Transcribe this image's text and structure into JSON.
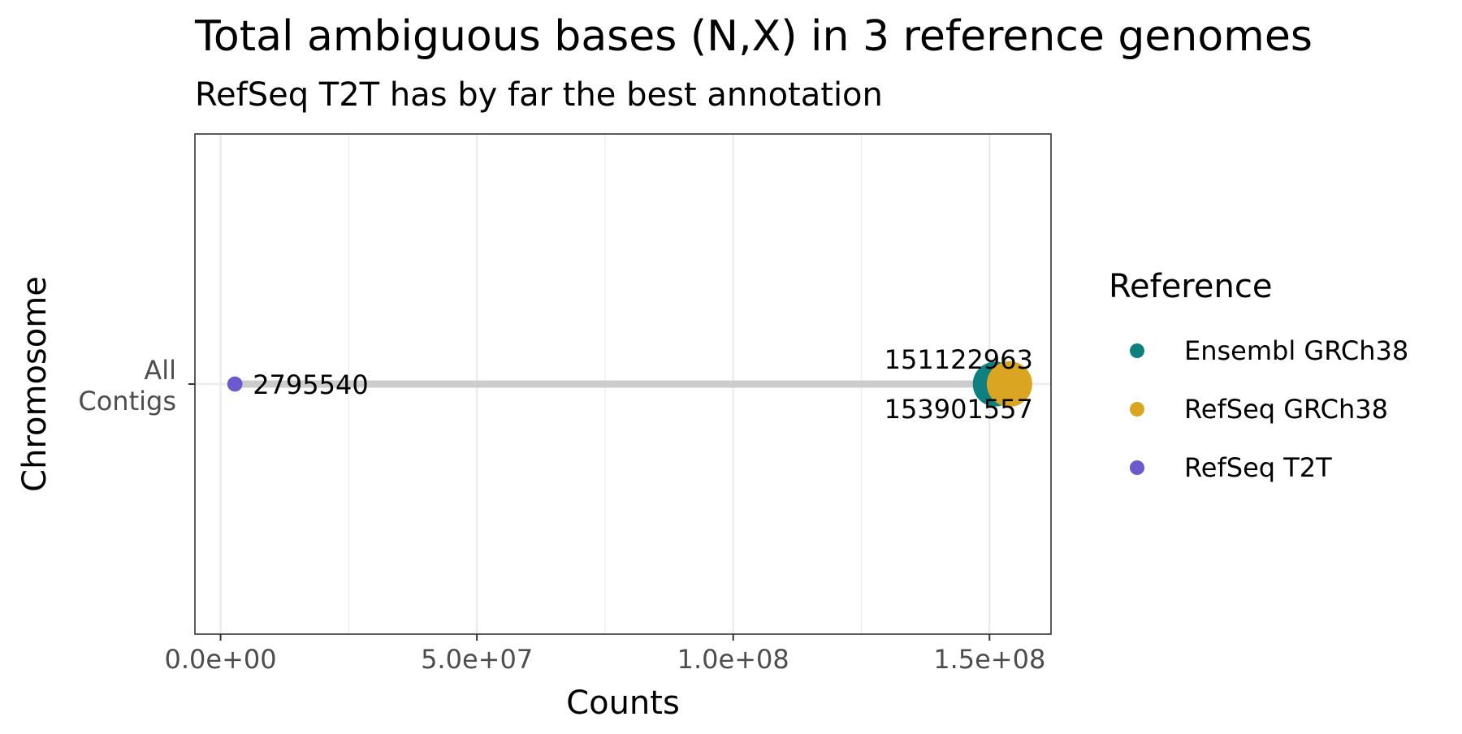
{
  "chart_data": {
    "type": "scatter",
    "title": "Total ambiguous bases (N,X) in 3 reference genomes",
    "subtitle": "RefSeq T2T has by far the best annotation",
    "xlabel": "Counts",
    "ylabel": "Chromosome",
    "categories": [
      "All\nContigs"
    ],
    "xlim": [
      -5000000,
      162000000
    ],
    "x_ticks": [
      0,
      50000000,
      100000000,
      150000000
    ],
    "x_tick_labels": [
      "0.0e+00",
      "5.0e+07",
      "1.0e+08",
      "1.5e+08"
    ],
    "grid": true,
    "legend_position": "right",
    "legend_title": "Reference",
    "series": [
      {
        "name": "Ensembl GRCh38",
        "color": "#0f8080",
        "category": "All\nContigs",
        "value": 151122963,
        "label": "151122963"
      },
      {
        "name": "RefSeq GRCh38",
        "color": "#daa520",
        "category": "All\nContigs",
        "value": 153901557,
        "label": "153901557"
      },
      {
        "name": "RefSeq T2T",
        "color": "#6a5acd",
        "category": "All\nContigs",
        "value": 2795540,
        "label": "2795540"
      }
    ],
    "segment_color": "#cccccc"
  }
}
